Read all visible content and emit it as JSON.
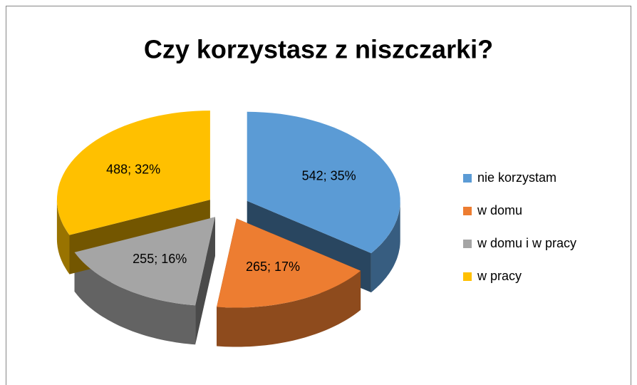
{
  "chart_data": {
    "type": "pie",
    "title": "Czy korzystasz z niszczarki?",
    "categories": [
      "nie korzystam",
      "w domu",
      "w domu i w pracy",
      "w pracy"
    ],
    "values": [
      542,
      265,
      255,
      488
    ],
    "value_labels": [
      "542; 35%",
      "265; 17%",
      "255; 16%",
      "488; 32%"
    ],
    "colors": [
      "#5b9bd5",
      "#ed7d31",
      "#a5a5a5",
      "#ffc000"
    ],
    "legend": "right"
  }
}
